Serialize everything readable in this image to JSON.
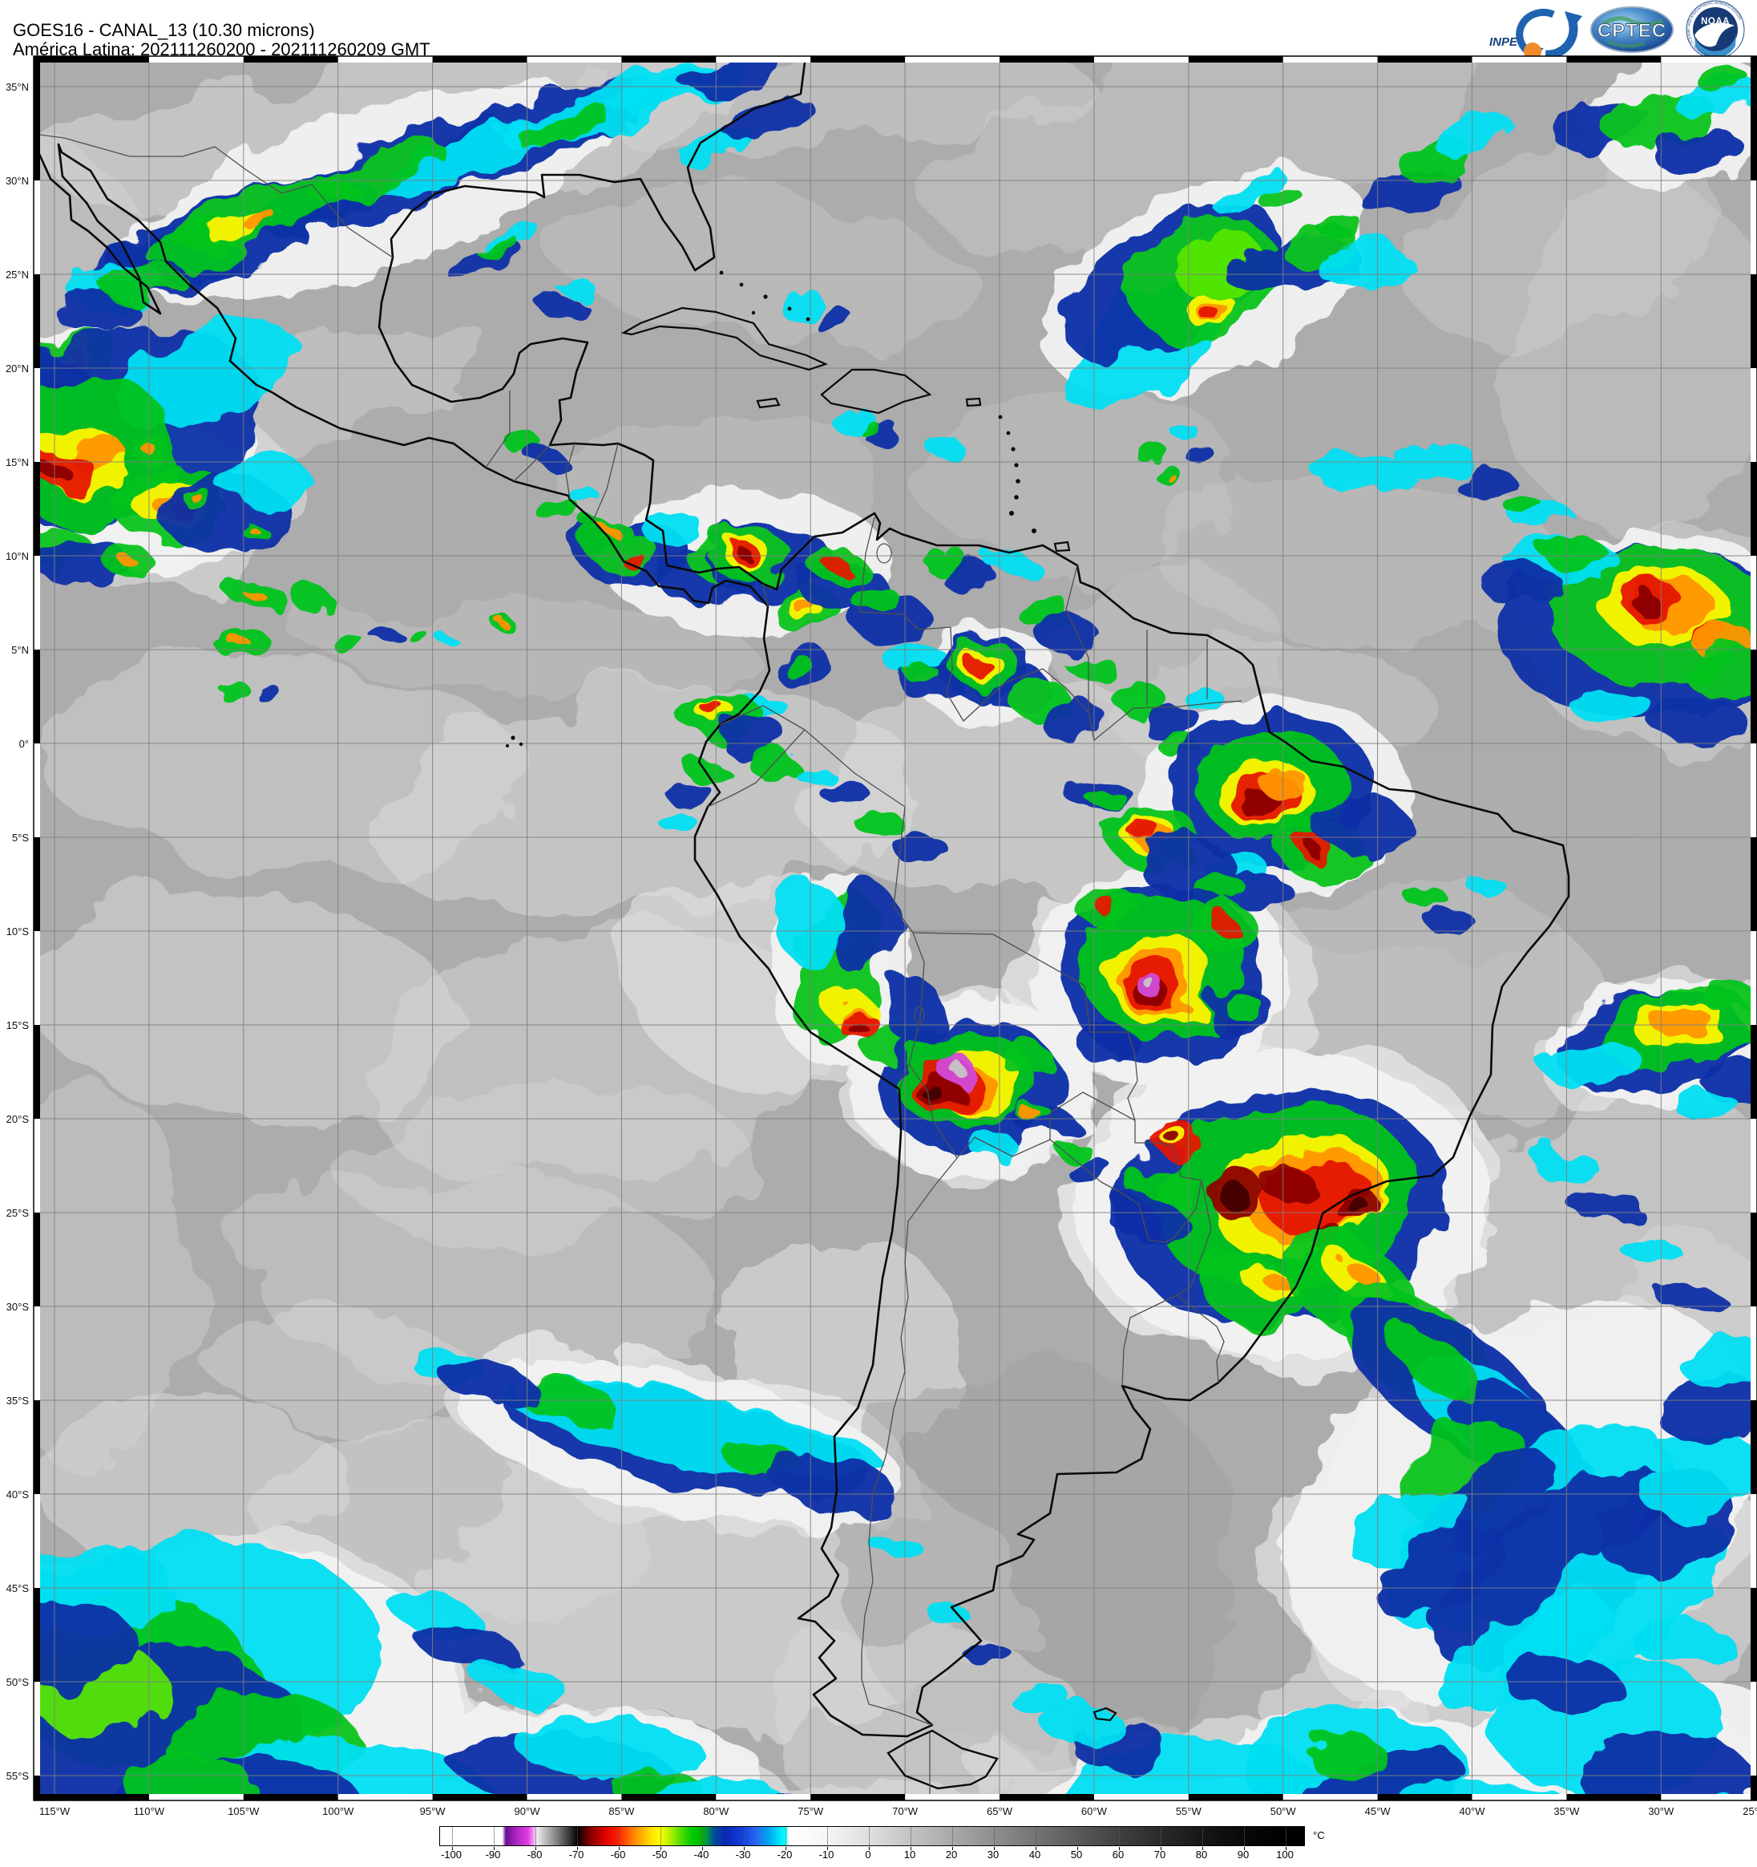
{
  "header": {
    "title_line1": "GOES16 - CANAL_13 (10.30 microns)",
    "title_line2": "América Latina: 202111260200 - 202111260209 GMT"
  },
  "logos": {
    "inpe": "INPE",
    "cptec": "CPTEC",
    "noaa": "NOAA",
    "noaa_ring": "NATIONAL OCEANIC AND ATMOSPHERIC ADMINISTRATION"
  },
  "map": {
    "lat_labels": [
      "35°N",
      "30°N",
      "25°N",
      "20°N",
      "15°N",
      "10°N",
      "5°N",
      "0°",
      "5°S",
      "10°S",
      "15°S",
      "20°S",
      "25°S",
      "30°S",
      "35°S",
      "40°S",
      "45°S",
      "50°S",
      "55°S"
    ],
    "lon_labels": [
      "115°W",
      "110°W",
      "105°W",
      "100°W",
      "95°W",
      "90°W",
      "85°W",
      "80°W",
      "75°W",
      "70°W",
      "65°W",
      "60°W",
      "55°W",
      "50°W",
      "45°W",
      "40°W",
      "35°W",
      "30°W",
      "25°W"
    ]
  },
  "colorbar": {
    "unit": "°C",
    "tick_labels": [
      "-100",
      "-90",
      "-80",
      "-70",
      "-60",
      "-50",
      "-40",
      "-30",
      "-20",
      "-10",
      "0",
      "10",
      "20",
      "30",
      "40",
      "50",
      "60",
      "70",
      "80",
      "90",
      "100"
    ],
    "gradient_stops": [
      [
        0,
        "#ffffff"
      ],
      [
        7.2,
        "#ffffff"
      ],
      [
        7.6,
        "#6a1090"
      ],
      [
        9.0,
        "#b428c8"
      ],
      [
        10.2,
        "#e03ee0"
      ],
      [
        10.8,
        "#f49cf4"
      ],
      [
        11.2,
        "#ededed"
      ],
      [
        12.2,
        "#bdbdbd"
      ],
      [
        13.6,
        "#7d7d7d"
      ],
      [
        15.2,
        "#2a2a2a"
      ],
      [
        15.9,
        "#000000"
      ],
      [
        16.3,
        "#2d0000"
      ],
      [
        17.5,
        "#8c0000"
      ],
      [
        19.0,
        "#d80000"
      ],
      [
        20.6,
        "#ff2000"
      ],
      [
        22.0,
        "#ff7000"
      ],
      [
        23.3,
        "#ffae00"
      ],
      [
        24.6,
        "#ffe600"
      ],
      [
        25.5,
        "#fdfd00"
      ],
      [
        26.6,
        "#b4f000"
      ],
      [
        27.9,
        "#50dc00"
      ],
      [
        29.2,
        "#00cc00"
      ],
      [
        30.3,
        "#00b400"
      ],
      [
        30.9,
        "#00964b"
      ],
      [
        31.7,
        "#004e96"
      ],
      [
        33.0,
        "#0a28b4"
      ],
      [
        35.1,
        "#1440dc"
      ],
      [
        36.6,
        "#2868f0"
      ],
      [
        38.1,
        "#00a8f0"
      ],
      [
        39.3,
        "#00e4fa"
      ],
      [
        39.9,
        "#00ffff"
      ],
      [
        40.4,
        "#ffffff"
      ],
      [
        44.7,
        "#f5f5f5"
      ],
      [
        49.5,
        "#e0e0e0"
      ],
      [
        54.4,
        "#c3c3c3"
      ],
      [
        59.2,
        "#a9a9a9"
      ],
      [
        64.0,
        "#8f8f8f"
      ],
      [
        68.8,
        "#757575"
      ],
      [
        73.6,
        "#5b5b5b"
      ],
      [
        78.4,
        "#414141"
      ],
      [
        83.2,
        "#2b2b2b"
      ],
      [
        88.1,
        "#171717"
      ],
      [
        92.9,
        "#090909"
      ],
      [
        97.7,
        "#000000"
      ],
      [
        100,
        "#000000"
      ]
    ]
  }
}
